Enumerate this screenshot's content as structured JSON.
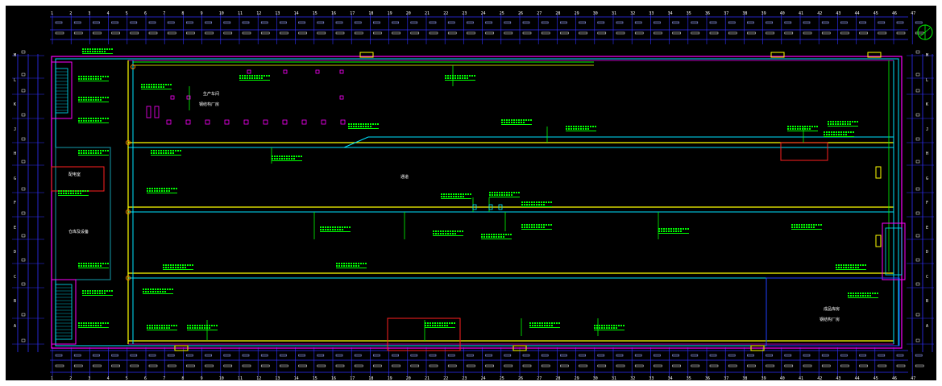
{
  "drawing": {
    "background": "#000000",
    "colors": {
      "wall": "#00e5ff",
      "boundary": "#ff00ff",
      "cable": "#00ff00",
      "tray": "#ffff00",
      "grid": "#3030ff",
      "text": "#ffffff",
      "highlight": "#ff2020"
    },
    "icons": {
      "north_arrow": "compass-icon"
    },
    "top_axis_labels": [
      "1",
      "2",
      "3",
      "4",
      "5",
      "6",
      "7",
      "8",
      "9",
      "10",
      "11",
      "12",
      "13",
      "14",
      "15",
      "16",
      "17",
      "18",
      "19",
      "20",
      "21",
      "22",
      "23",
      "24",
      "25",
      "26",
      "27",
      "28",
      "29",
      "30",
      "31",
      "32",
      "33",
      "34",
      "35",
      "36",
      "37",
      "38",
      "39",
      "40",
      "41",
      "42",
      "43",
      "44",
      "45",
      "46",
      "47"
    ],
    "left_axis_labels": [
      "M",
      "L",
      "K",
      "J",
      "H",
      "G",
      "F",
      "E",
      "D",
      "C",
      "B",
      "A"
    ],
    "room_labels": {
      "main_area": "生产车间",
      "main_sub": "钢结构厂房",
      "corridor": "通道",
      "left_room": "配电室",
      "left_storage": "仓库及设备",
      "right_room": "成品库房",
      "right_sub": "钢结构厂房"
    }
  }
}
